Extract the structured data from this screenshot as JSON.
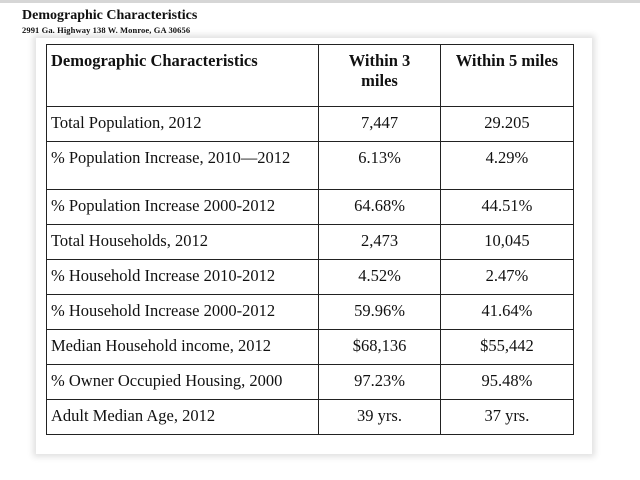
{
  "header": {
    "title": "Demographic Characteristics",
    "address": "2991 Ga. Highway 138 W.  Monroe, GA 30656"
  },
  "table": {
    "columns": [
      "Demographic Characteristics",
      "Within 3 miles",
      "Within 5 miles"
    ],
    "rows": [
      {
        "label": "Total Population, 2012",
        "within3": "7,447",
        "within5": "29.205"
      },
      {
        "label": "% Population Increase, 2010—2012",
        "within3": "6.13%",
        "within5": "4.29%"
      },
      {
        "label": "% Population Increase 2000-2012",
        "within3": "64.68%",
        "within5": "44.51%"
      },
      {
        "label": "Total Households, 2012",
        "within3": "2,473",
        "within5": "10,045"
      },
      {
        "label": "% Household Increase 2010-2012",
        "within3": "4.52%",
        "within5": "2.47%"
      },
      {
        "label": "% Household Increase 2000-2012",
        "within3": "59.96%",
        "within5": "41.64%"
      },
      {
        "label": "Median Household income, 2012",
        "within3": "$68,136",
        "within5": "$55,442"
      },
      {
        "label": "% Owner Occupied Housing, 2000",
        "within3": "97.23%",
        "within5": "95.48%"
      },
      {
        "label": "Adult Median Age, 2012",
        "within3": "39 yrs.",
        "within5": "37 yrs."
      }
    ]
  }
}
